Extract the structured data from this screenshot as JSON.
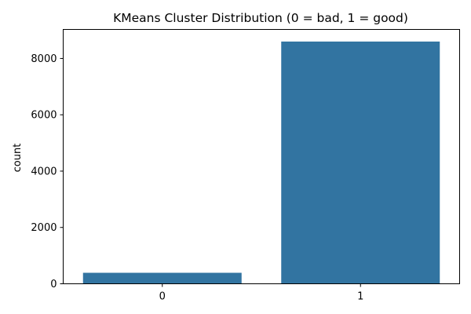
{
  "chart_data": {
    "type": "bar",
    "title": "KMeans Cluster Distribution (0 = bad, 1 = good)",
    "xlabel": "",
    "ylabel": "count",
    "categories": [
      "0",
      "1"
    ],
    "values": [
      390,
      8600
    ],
    "ylim": [
      0,
      9030
    ],
    "yticks": [
      0,
      2000,
      4000,
      6000,
      8000
    ],
    "ytick_labels": [
      "0",
      "2000",
      "4000",
      "6000",
      "8000"
    ],
    "grid": false,
    "legend": "none",
    "bar_color": "#3274a1"
  }
}
